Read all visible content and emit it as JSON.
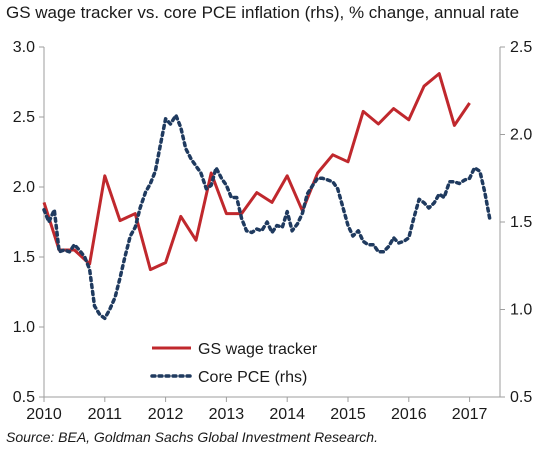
{
  "title": "GS wage tracker vs. core PCE inflation (rhs), % change, annual rate",
  "source": "Source: BEA, Goldman Sachs Global Investment Research.",
  "colors": {
    "wage": "#c0282d",
    "pce": "#1f3a5f",
    "axis": "#9e9e9e"
  },
  "chart_data": {
    "type": "line",
    "title": "GS wage tracker vs. core PCE inflation (rhs), % change, annual rate",
    "xlim": [
      2010,
      2017.5
    ],
    "x_ticks": [
      "2010",
      "2011",
      "2012",
      "2013",
      "2014",
      "2015",
      "2016",
      "2017"
    ],
    "y_left": {
      "lim": [
        0.5,
        3.0
      ],
      "ticks": [
        "0.5",
        "1.0",
        "1.5",
        "2.0",
        "2.5",
        "3.0"
      ]
    },
    "y_right": {
      "lim": [
        0.5,
        2.5
      ],
      "ticks": [
        "0.5",
        "1.0",
        "1.5",
        "2.0",
        "2.5"
      ]
    },
    "legend": "center-left",
    "grid": false,
    "series": [
      {
        "name": "GS wage tracker",
        "axis": "left",
        "style": "solid",
        "x": [
          2010.0,
          2010.25,
          2010.5,
          2010.75,
          2011.0,
          2011.25,
          2011.5,
          2011.75,
          2012.0,
          2012.25,
          2012.5,
          2012.75,
          2013.0,
          2013.25,
          2013.5,
          2013.75,
          2014.0,
          2014.25,
          2014.5,
          2014.75,
          2015.0,
          2015.25,
          2015.5,
          2015.75,
          2016.0,
          2016.25,
          2016.5,
          2016.75,
          2017.0
        ],
        "y": [
          1.89,
          1.55,
          1.55,
          1.45,
          2.08,
          1.76,
          1.81,
          1.41,
          1.46,
          1.79,
          1.62,
          2.1,
          1.81,
          1.81,
          1.96,
          1.89,
          2.08,
          1.83,
          2.1,
          2.23,
          2.18,
          2.54,
          2.45,
          2.56,
          2.48,
          2.72,
          2.81,
          2.44,
          2.6
        ]
      },
      {
        "name": "Core PCE (rhs)",
        "axis": "right",
        "style": "dotted",
        "x": [
          2010.0,
          2010.08,
          2010.17,
          2010.25,
          2010.33,
          2010.42,
          2010.5,
          2010.58,
          2010.67,
          2010.75,
          2010.83,
          2010.92,
          2011.0,
          2011.08,
          2011.17,
          2011.25,
          2011.33,
          2011.42,
          2011.5,
          2011.58,
          2011.67,
          2011.75,
          2011.83,
          2011.92,
          2012.0,
          2012.08,
          2012.17,
          2012.25,
          2012.33,
          2012.42,
          2012.5,
          2012.58,
          2012.67,
          2012.75,
          2012.83,
          2012.92,
          2013.0,
          2013.08,
          2013.17,
          2013.25,
          2013.33,
          2013.42,
          2013.5,
          2013.58,
          2013.67,
          2013.75,
          2013.83,
          2013.92,
          2014.0,
          2014.08,
          2014.17,
          2014.25,
          2014.33,
          2014.42,
          2014.5,
          2014.58,
          2014.67,
          2014.75,
          2014.83,
          2014.92,
          2015.0,
          2015.08,
          2015.17,
          2015.25,
          2015.33,
          2015.42,
          2015.5,
          2015.58,
          2015.67,
          2015.75,
          2015.83,
          2015.92,
          2016.0,
          2016.08,
          2016.17,
          2016.25,
          2016.33,
          2016.42,
          2016.5,
          2016.58,
          2016.67,
          2016.75,
          2016.83,
          2016.92,
          2017.0,
          2017.08,
          2017.17,
          2017.25,
          2017.33
        ],
        "y": [
          1.57,
          1.5,
          1.57,
          1.33,
          1.34,
          1.33,
          1.37,
          1.34,
          1.3,
          1.23,
          1.02,
          0.97,
          0.95,
          1.0,
          1.07,
          1.18,
          1.3,
          1.42,
          1.47,
          1.58,
          1.67,
          1.72,
          1.79,
          1.95,
          2.09,
          2.06,
          2.11,
          2.04,
          1.92,
          1.86,
          1.82,
          1.78,
          1.69,
          1.71,
          1.81,
          1.75,
          1.71,
          1.64,
          1.64,
          1.52,
          1.45,
          1.44,
          1.46,
          1.45,
          1.5,
          1.44,
          1.48,
          1.47,
          1.56,
          1.45,
          1.49,
          1.55,
          1.66,
          1.71,
          1.75,
          1.75,
          1.74,
          1.73,
          1.69,
          1.58,
          1.48,
          1.42,
          1.45,
          1.39,
          1.37,
          1.37,
          1.33,
          1.33,
          1.36,
          1.41,
          1.38,
          1.39,
          1.41,
          1.52,
          1.63,
          1.61,
          1.58,
          1.61,
          1.66,
          1.64,
          1.73,
          1.73,
          1.72,
          1.74,
          1.75,
          1.81,
          1.79,
          1.67,
          1.52
        ]
      }
    ]
  }
}
